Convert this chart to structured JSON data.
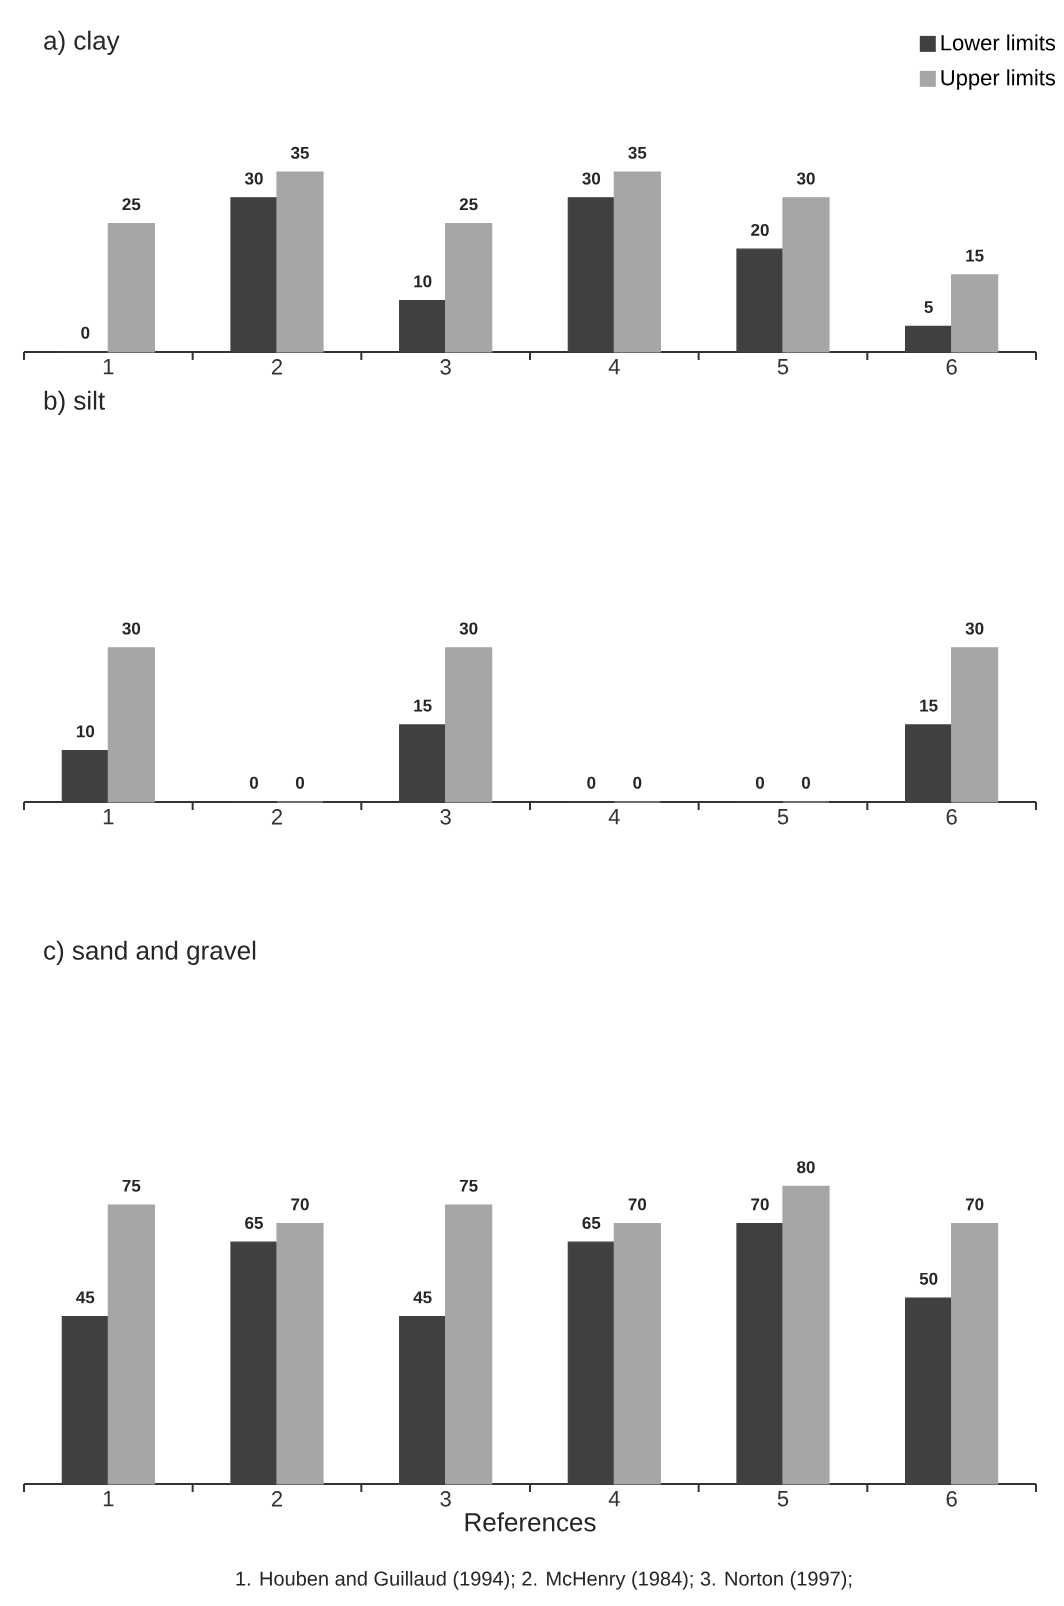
{
  "chart_data": [
    {
      "type": "bar",
      "title": "a) clay",
      "categories": [
        "1",
        "2",
        "3",
        "4",
        "5",
        "6"
      ],
      "legend": "top right",
      "data_labels": true,
      "series": [
        {
          "name": "Lower limits",
          "color": "#404040",
          "values": [
            0,
            30,
            10,
            30,
            20,
            5
          ]
        },
        {
          "name": "Upper limits",
          "color": "#a6a6a6",
          "values": [
            25,
            35,
            25,
            35,
            30,
            15
          ]
        }
      ]
    },
    {
      "type": "bar",
      "title": "b) silt",
      "categories": [
        "1",
        "2",
        "3",
        "4",
        "5",
        "6"
      ],
      "data_labels": true,
      "series": [
        {
          "color": "#404040",
          "values": [
            10,
            0,
            15,
            0,
            0,
            15
          ]
        },
        {
          "color": "#a6a6a6",
          "values": [
            30,
            0,
            30,
            0,
            0,
            30
          ]
        }
      ]
    },
    {
      "type": "bar",
      "title": "c) sand and gravel",
      "categories": [
        "1",
        "2",
        "3",
        "4",
        "5",
        "6"
      ],
      "data_labels": true,
      "xlabel": "References",
      "annotations": [
        "1. Houben and Guillaud (1994); 2. McHenry (1984); 3. Norton (1997);"
      ],
      "series": [
        {
          "color": "#404040",
          "values": [
            45,
            65,
            45,
            65,
            70,
            50
          ]
        },
        {
          "color": "#a6a6a6",
          "values": [
            75,
            70,
            75,
            70,
            80,
            70
          ]
        }
      ]
    }
  ]
}
